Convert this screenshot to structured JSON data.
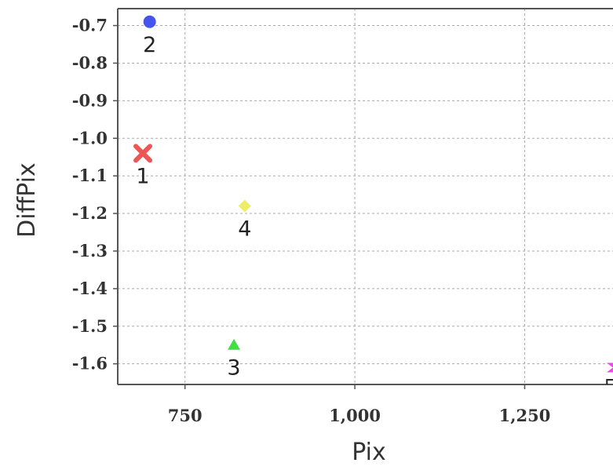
{
  "chart_data": {
    "type": "scatter",
    "xlabel": "Pix",
    "ylabel": "DiffPix",
    "xlim": [
      651,
      1380
    ],
    "ylim": [
      -1.655,
      -0.655
    ],
    "grid": true,
    "x_ticks": [
      {
        "value": 750,
        "label": "750"
      },
      {
        "value": 1000,
        "label": "1,000"
      },
      {
        "value": 1250,
        "label": "1,250"
      }
    ],
    "y_ticks": [
      {
        "value": -0.7,
        "label": "-0.7"
      },
      {
        "value": -0.8,
        "label": "-0.8"
      },
      {
        "value": -0.9,
        "label": "-0.9"
      },
      {
        "value": -1.0,
        "label": "-1.0"
      },
      {
        "value": -1.1,
        "label": "-1.1"
      },
      {
        "value": -1.2,
        "label": "-1.2"
      },
      {
        "value": -1.3,
        "label": "-1.3"
      },
      {
        "value": -1.4,
        "label": "-1.4"
      },
      {
        "value": -1.5,
        "label": "-1.5"
      },
      {
        "value": -1.6,
        "label": "-1.6"
      }
    ],
    "points": [
      {
        "label": "1",
        "x": 688,
        "y": -1.04,
        "marker": "x",
        "color": "#ee5555"
      },
      {
        "label": "2",
        "x": 698,
        "y": -0.69,
        "marker": "circle",
        "color": "#4455ee"
      },
      {
        "label": "3",
        "x": 822,
        "y": -1.55,
        "marker": "triangle",
        "color": "#44dd44"
      },
      {
        "label": "4",
        "x": 838,
        "y": -1.18,
        "marker": "diamond",
        "color": "#eeee66"
      },
      {
        "label": "",
        "x": 1380,
        "y": -1.61,
        "marker": "hourglass",
        "color": "#ee44ee"
      },
      {
        "label": "",
        "x": 1378,
        "y": -1.655,
        "marker": "square",
        "color": "#222222"
      }
    ]
  }
}
